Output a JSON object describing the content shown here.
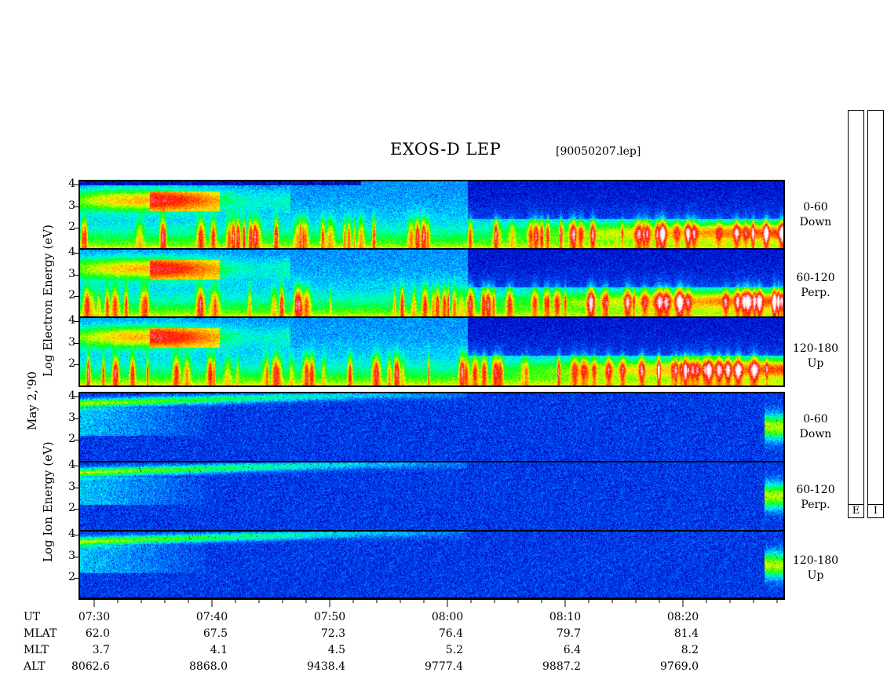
{
  "title": "EXOS-D LEP",
  "filename": "[90050207.lep]",
  "date_label": "May  2,'90",
  "electron_label": "Log  Electron  Energy (eV)",
  "ion_label": "Log  Ion  Energy (eV)",
  "colorbar": {
    "electron_tag": "E",
    "ion_tag": "I"
  },
  "panels": [
    {
      "species": "electron",
      "range_line1": "0-60",
      "range_line2": "Down"
    },
    {
      "species": "electron",
      "range_line1": "60-120",
      "range_line2": "Perp."
    },
    {
      "species": "electron",
      "range_line1": "120-180",
      "range_line2": "Up"
    },
    {
      "species": "ion",
      "range_line1": "0-60",
      "range_line2": "Down"
    },
    {
      "species": "ion",
      "range_line1": "60-120",
      "range_line2": "Perp."
    },
    {
      "species": "ion",
      "range_line1": "120-180",
      "range_line2": "Up"
    }
  ],
  "axis_rows": {
    "labels": [
      "UT",
      "MLAT",
      "MLT",
      "ALT"
    ],
    "columns": [
      {
        "ut": "07:30",
        "mlat": "62.0",
        "mlt": "3.7",
        "alt": "8062.6"
      },
      {
        "ut": "07:40",
        "mlat": "67.5",
        "mlt": "4.1",
        "alt": "8868.0"
      },
      {
        "ut": "07:50",
        "mlat": "72.3",
        "mlt": "4.5",
        "alt": "9438.4"
      },
      {
        "ut": "08:00",
        "mlat": "76.4",
        "mlt": "5.2",
        "alt": "9777.4"
      },
      {
        "ut": "08:10",
        "mlat": "79.7",
        "mlt": "6.4",
        "alt": "9887.2"
      },
      {
        "ut": "08:20",
        "mlat": "81.4",
        "mlt": "8.2",
        "alt": "9769.0"
      }
    ]
  },
  "chart_data": {
    "type": "heatmap",
    "title": "EXOS-D LEP",
    "ylabel_electron": "Log Electron Energy (eV)",
    "ylabel_ion": "Log Ion Energy (eV)",
    "y_ticks_electron_top": [
      2,
      3,
      4
    ],
    "y_ticks_other": [
      2,
      3,
      4
    ],
    "y_ticks_ion_bottom": [
      2,
      3,
      4
    ],
    "x_ticks": [
      "07:30",
      "07:40",
      "07:50",
      "08:00",
      "08:10",
      "08:20"
    ],
    "x_range": [
      "07:29",
      "08:29"
    ],
    "ylim": [
      1,
      4.2
    ],
    "pitch_angle_bins": [
      "0-60 Down",
      "60-120 Perp.",
      "120-180 Up"
    ],
    "colormap": [
      "#ffffff",
      "#ffc0c0",
      "#ff0000",
      "#ff8000",
      "#ffff00",
      "#00ff00",
      "#00ffff",
      "#0060ff",
      "#0000c0",
      "#000070"
    ]
  }
}
